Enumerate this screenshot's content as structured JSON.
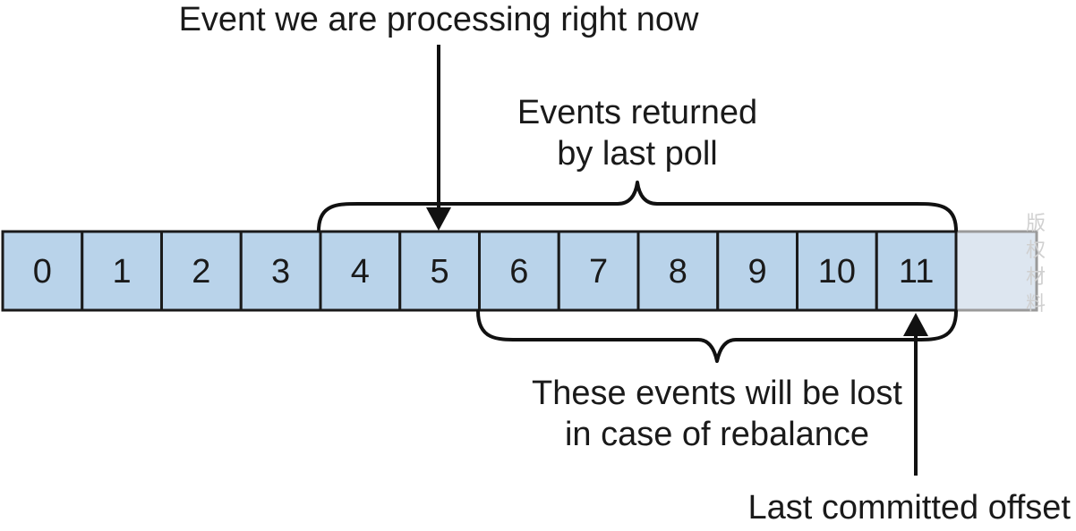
{
  "colors": {
    "cell_fill": "#b9d3ea",
    "cell_stroke": "#1a1a1a",
    "ghost_cell_fill": "#dde6f0",
    "ghost_cell_stroke": "#9a9a9a",
    "bracket_stroke": "#111111",
    "arrow": "#111111"
  },
  "partition": {
    "offsets": [
      "0",
      "1",
      "2",
      "3",
      "4",
      "5",
      "6",
      "7",
      "8",
      "9",
      "10",
      "11"
    ]
  },
  "labels": {
    "processing": "Event we are processing right now",
    "returned_line1": "Events returned",
    "returned_line2": "by last poll",
    "lost_line1": "These events will be lost",
    "lost_line2": "in case of rebalance",
    "committed": "Last committed offset"
  },
  "watermark": {
    "chars": [
      "版",
      "权",
      "材",
      "料"
    ]
  }
}
